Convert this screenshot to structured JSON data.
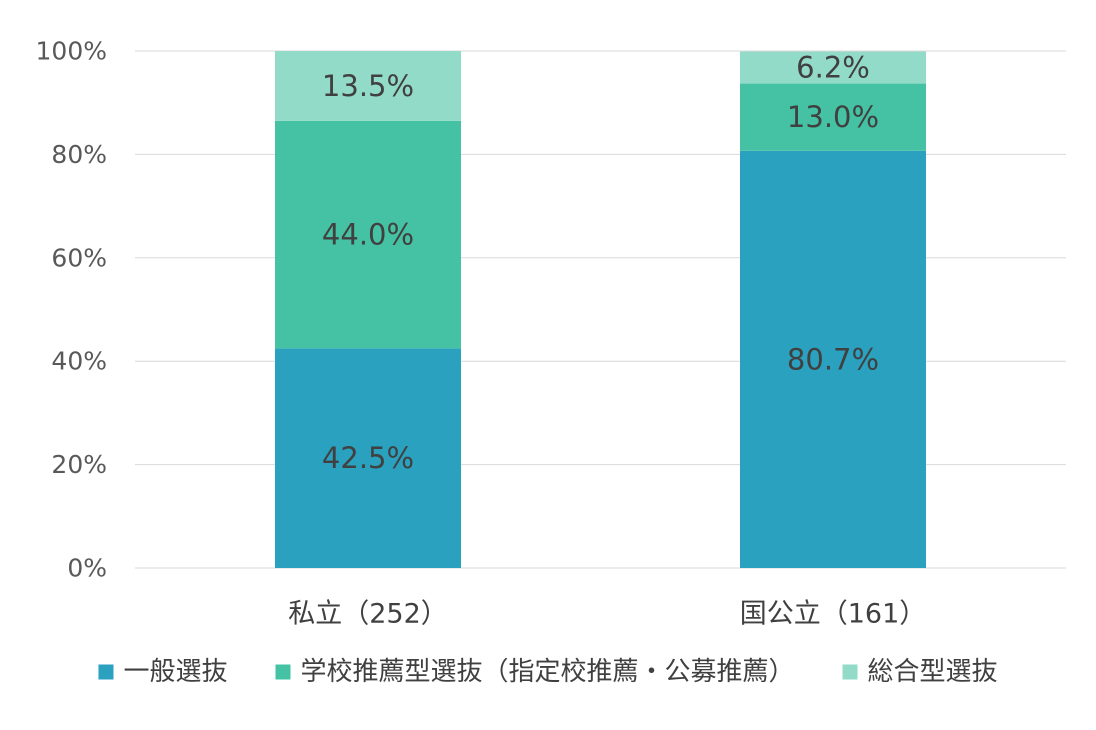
{
  "chart_data": {
    "type": "bar",
    "stacked": true,
    "percent": true,
    "categories": [
      "私立（252）",
      "国公立（161）"
    ],
    "series": [
      {
        "name": "一般選抜",
        "values": [
          42.5,
          80.7
        ],
        "labels": [
          "42.5%",
          "80.7%"
        ],
        "color": "#2aa1bf"
      },
      {
        "name": "学校推薦型選抜（指定校推薦・公募推薦）",
        "values": [
          44.0,
          13.0
        ],
        "labels": [
          "44.0%",
          "13.0%"
        ],
        "color": "#45c2a3"
      },
      {
        "name": "総合型選抜",
        "values": [
          13.5,
          6.2
        ],
        "labels": [
          "13.5%",
          "6.2%"
        ],
        "color": "#93dbc9"
      }
    ],
    "ylim": [
      0,
      100
    ],
    "yticks": [
      0,
      20,
      40,
      60,
      80,
      100
    ],
    "ytick_labels": [
      "0%",
      "20%",
      "40%",
      "60%",
      "80%",
      "100%"
    ],
    "title": "",
    "xlabel": "",
    "ylabel": "",
    "grid": true,
    "legend_position": "bottom"
  }
}
